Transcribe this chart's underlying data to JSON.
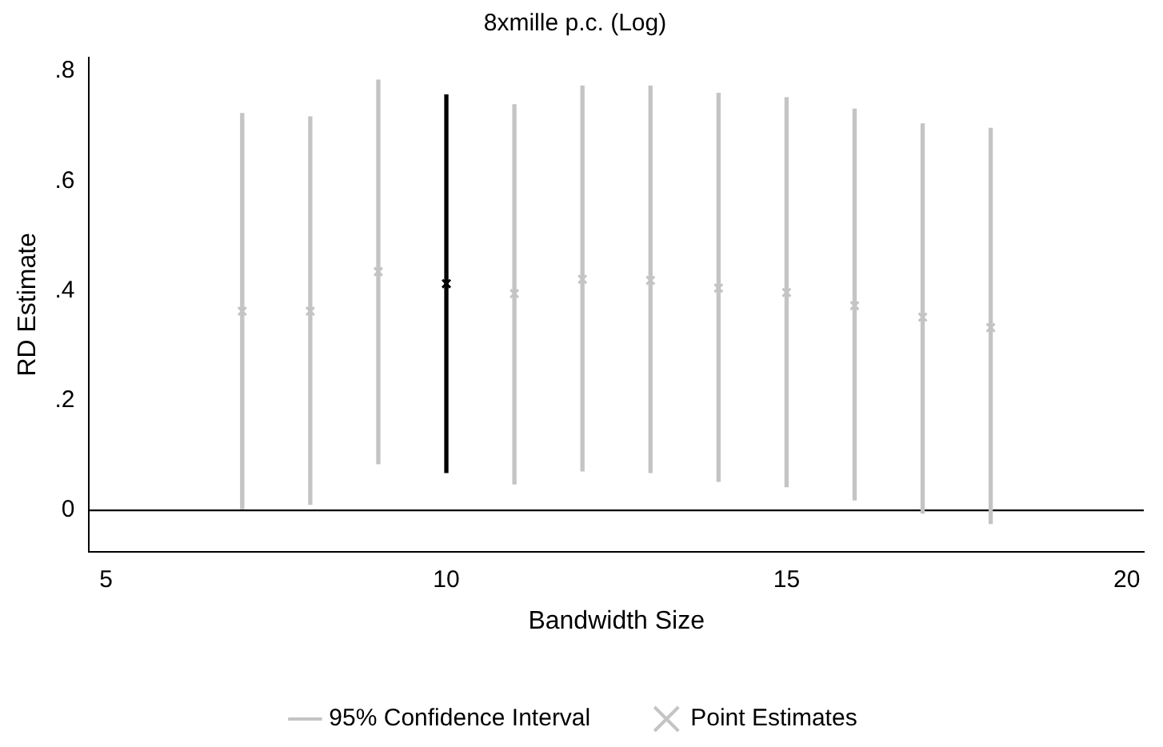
{
  "chart_data": {
    "type": "scatter",
    "title": "8xmille p.c. (Log)",
    "xlabel": "Bandwidth Size",
    "ylabel": "RD Estimate",
    "x": [
      7,
      8,
      9,
      10,
      11,
      12,
      13,
      14,
      15,
      16,
      17,
      18
    ],
    "xlim": [
      4.75,
      20.25
    ],
    "xticks": [
      5,
      10,
      15,
      20
    ],
    "ylim": [
      -0.075,
      0.825
    ],
    "yticks": [
      {
        "value": 0,
        "label": "0"
      },
      {
        "value": 0.2,
        "label": ".2"
      },
      {
        "value": 0.4,
        "label": ".4"
      },
      {
        "value": 0.6,
        "label": ".6"
      },
      {
        "value": 0.8,
        "label": ".8"
      }
    ],
    "series": [
      {
        "name": "95% Confidence Interval",
        "type": "bar",
        "color": "#c4c4c4",
        "colors": [
          "#c4c4c4",
          "#c4c4c4",
          "#c4c4c4",
          "#000000",
          "#c4c4c4",
          "#c4c4c4",
          "#c4c4c4",
          "#c4c4c4",
          "#c4c4c4",
          "#c4c4c4",
          "#c4c4c4",
          "#c4c4c4"
        ],
        "base": [
          0.003,
          0.011,
          0.085,
          0.069,
          0.048,
          0.072,
          0.069,
          0.053,
          0.043,
          0.019,
          -0.005,
          -0.024
        ],
        "values": [
          0.72,
          0.706,
          0.699,
          0.688,
          0.691,
          0.701,
          0.704,
          0.707,
          0.709,
          0.712,
          0.709,
          0.72
        ]
      },
      {
        "name": "Point Estimates",
        "color": "#c4c4c4",
        "marker": "cross",
        "colors": [
          "#c4c4c4",
          "#c4c4c4",
          "#c4c4c4",
          "#000000",
          "#c4c4c4",
          "#c4c4c4",
          "#c4c4c4",
          "#c4c4c4",
          "#c4c4c4",
          "#c4c4c4",
          "#c4c4c4",
          "#c4c4c4"
        ],
        "values": [
          0.363,
          0.363,
          0.435,
          0.413,
          0.395,
          0.421,
          0.419,
          0.405,
          0.397,
          0.373,
          0.352,
          0.333
        ]
      }
    ],
    "ref_lines": [
      {
        "axis": "y",
        "value": 0,
        "color": "#000000"
      }
    ],
    "grid": false,
    "legend": "bottom"
  }
}
